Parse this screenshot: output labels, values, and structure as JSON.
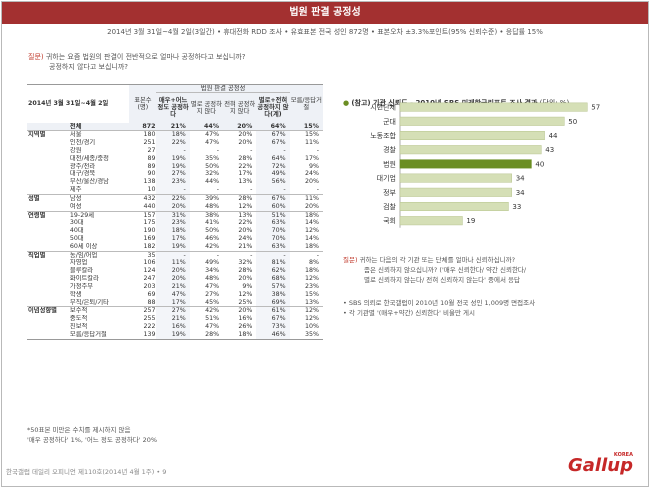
{
  "title": "법원 판결 공정성",
  "subtitle": "2014년 3월 31일~4월 2일(3일간) • 휴대전화 RDD 조사 • 유효표본 전국 성인 872명 • 표본오차 ±3.3%포인트(95% 신뢰수준) • 응답률 15%",
  "question": {
    "prefix": "질문)",
    "line1": " 귀하는 요즘 법원의 판결이 전반적으로 얼마나 공정하다고 보십니까?",
    "line2": "공정하지 않다고 보십니까?"
  },
  "table": {
    "corner": "2014년 3월 31일~4월 2일",
    "col_n": "표본수(명)",
    "group_header": "법원 판결 공정성",
    "cols": [
      "매우+어느 정도 공정하다",
      "별로 공정하지 않다",
      "전혀 공정하지 않다",
      "별로+전혀 공정하지 않다(계)",
      "모름/응답거절"
    ],
    "total": {
      "label": "전체",
      "n": "872",
      "v": [
        "21%",
        "44%",
        "20%",
        "64%",
        "15%"
      ]
    },
    "groups": [
      {
        "name": "지역별",
        "rows": [
          {
            "label": "서울",
            "n": "180",
            "v": [
              "18%",
              "47%",
              "20%",
              "67%",
              "15%"
            ]
          },
          {
            "label": "인천/경기",
            "n": "251",
            "v": [
              "22%",
              "47%",
              "20%",
              "67%",
              "11%"
            ]
          },
          {
            "label": "강원",
            "n": "27",
            "v": [
              "-",
              "-",
              "-",
              "-",
              "-"
            ]
          },
          {
            "label": "대전/세종/충청",
            "n": "89",
            "v": [
              "19%",
              "35%",
              "28%",
              "64%",
              "17%"
            ]
          },
          {
            "label": "광주/전라",
            "n": "89",
            "v": [
              "19%",
              "50%",
              "22%",
              "72%",
              "9%"
            ]
          },
          {
            "label": "대구/경북",
            "n": "90",
            "v": [
              "27%",
              "32%",
              "17%",
              "49%",
              "24%"
            ]
          },
          {
            "label": "부산/울산/경남",
            "n": "138",
            "v": [
              "23%",
              "44%",
              "13%",
              "56%",
              "20%"
            ]
          },
          {
            "label": "제주",
            "n": "10",
            "v": [
              "-",
              "-",
              "-",
              "-",
              "-"
            ]
          }
        ]
      },
      {
        "name": "성별",
        "rows": [
          {
            "label": "남성",
            "n": "432",
            "v": [
              "22%",
              "39%",
              "28%",
              "67%",
              "11%"
            ]
          },
          {
            "label": "여성",
            "n": "440",
            "v": [
              "20%",
              "48%",
              "12%",
              "60%",
              "20%"
            ]
          }
        ]
      },
      {
        "name": "연령별",
        "rows": [
          {
            "label": "19-29세",
            "n": "157",
            "v": [
              "31%",
              "38%",
              "13%",
              "51%",
              "18%"
            ]
          },
          {
            "label": "30대",
            "n": "175",
            "v": [
              "23%",
              "41%",
              "22%",
              "63%",
              "14%"
            ]
          },
          {
            "label": "40대",
            "n": "190",
            "v": [
              "18%",
              "50%",
              "20%",
              "70%",
              "12%"
            ]
          },
          {
            "label": "50대",
            "n": "169",
            "v": [
              "17%",
              "46%",
              "24%",
              "70%",
              "14%"
            ]
          },
          {
            "label": "60세 이상",
            "n": "182",
            "v": [
              "19%",
              "42%",
              "21%",
              "63%",
              "18%"
            ]
          }
        ]
      },
      {
        "name": "직업별",
        "rows": [
          {
            "label": "농/임/어업",
            "n": "35",
            "v": [
              "-",
              "-",
              "-",
              "-",
              "-"
            ]
          },
          {
            "label": "자영업",
            "n": "106",
            "v": [
              "11%",
              "49%",
              "32%",
              "81%",
              "8%"
            ]
          },
          {
            "label": "블루칼라",
            "n": "124",
            "v": [
              "20%",
              "34%",
              "28%",
              "62%",
              "18%"
            ]
          },
          {
            "label": "화이트칼라",
            "n": "247",
            "v": [
              "20%",
              "48%",
              "20%",
              "68%",
              "12%"
            ]
          },
          {
            "label": "가정주부",
            "n": "203",
            "v": [
              "21%",
              "47%",
              "9%",
              "57%",
              "23%"
            ]
          },
          {
            "label": "학생",
            "n": "69",
            "v": [
              "47%",
              "27%",
              "12%",
              "38%",
              "15%"
            ]
          },
          {
            "label": "무직/은퇴/기타",
            "n": "88",
            "v": [
              "17%",
              "45%",
              "25%",
              "69%",
              "13%"
            ]
          }
        ]
      },
      {
        "name": "이념성향별",
        "rows": [
          {
            "label": "보수적",
            "n": "257",
            "v": [
              "27%",
              "42%",
              "20%",
              "61%",
              "12%"
            ]
          },
          {
            "label": "중도적",
            "n": "255",
            "v": [
              "21%",
              "51%",
              "16%",
              "67%",
              "12%"
            ]
          },
          {
            "label": "진보적",
            "n": "222",
            "v": [
              "16%",
              "47%",
              "26%",
              "73%",
              "10%"
            ]
          },
          {
            "label": "모름/응답거절",
            "n": "139",
            "v": [
              "19%",
              "28%",
              "18%",
              "46%",
              "35%"
            ]
          }
        ]
      }
    ]
  },
  "notes": [
    "*50표본 미만은 수치를 제시하지 않음",
    "'매우 공정하다' 1%, '어느 정도 공정하다' 20%"
  ],
  "footer": "한국갤럽 데일리 오피니언 제110호(2014년 4월 1주) • 9",
  "logo": {
    "text": "Gallup",
    "sup": "KOREA"
  },
  "right": {
    "title": "(참고) 기관 신뢰도 - 2010년 SBS 미래한국리포트 조사 결과",
    "unit": "(단위: %)",
    "note": {
      "prefix": "질문)",
      "l1": " 귀하는 다음의 각 기관 또는 단체를 얼마나 신뢰하십니까?",
      "l2": "좀은 신뢰하지 않으십니까? ('매우 신뢰한다/ 약간 신뢰한다/",
      "l3": "별로 신뢰하지 않는다/ 전혀 신뢰하지 않는다' 중에서 응답"
    },
    "src": [
      "• SBS 의뢰로 한국갤럽이 2010년 10월 전국 성인 1,009명 면접조사",
      "• 각 기관별 '(매우+약간) 신뢰한다' 비율만 게시"
    ]
  },
  "chart_data": {
    "type": "bar",
    "orientation": "horizontal",
    "categories": [
      "시민단체",
      "군대",
      "노동조합",
      "경찰",
      "법원",
      "대기업",
      "정부",
      "검찰",
      "국회"
    ],
    "values": [
      57,
      50,
      44,
      43,
      40,
      34,
      34,
      33,
      19
    ],
    "highlight": "법원",
    "colors": {
      "bar": "#d5dfb6",
      "highlight": "#6b8e23",
      "bar_edge": "#b7c48e"
    },
    "xlim": [
      0,
      70
    ],
    "title": "(참고) 기관 신뢰도 - 2010년 SBS 미래한국리포트 조사 결과",
    "unit": "(단위: %)"
  },
  "colors": {
    "header": "#a33030",
    "accent": "#c0392b"
  }
}
